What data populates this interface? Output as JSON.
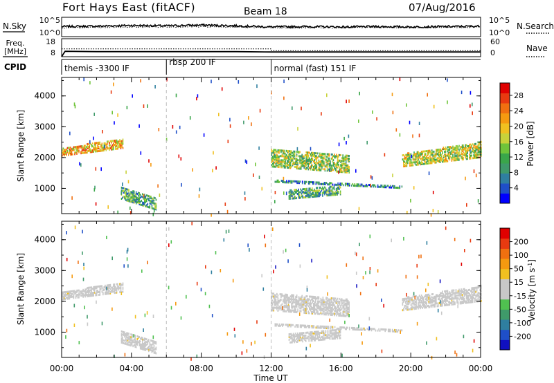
{
  "header": {
    "title": "Fort Hays East (fitACF)",
    "beam": "Beam 18",
    "date": "07/Aug/2016"
  },
  "colors": {
    "power_scale": [
      "#0000ff",
      "#1f4fc8",
      "#2f7fa0",
      "#3f9a6a",
      "#3aa64a",
      "#6fc43a",
      "#c8d23a",
      "#f0c020",
      "#f59a10",
      "#f07010",
      "#e83a10",
      "#e00000"
    ],
    "velocity_scale": [
      "#1010c0",
      "#1f4fc8",
      "#2f7fa0",
      "#3f9a6a",
      "#50c050",
      "#c8c8c8",
      "#c8c8c8",
      "#f0c020",
      "#f59a10",
      "#f07010",
      "#e83a10",
      "#e00000"
    ]
  },
  "chart_data": [
    {
      "type": "line",
      "panel": "noise",
      "left_label": "N.Sky",
      "right_label": "N.Search",
      "yticks_left": [
        "10^5",
        "10^0"
      ],
      "yticks_right": [
        "10^5",
        "10^0"
      ],
      "series": [
        {
          "name": "N.Sky",
          "style": "solid",
          "x": [
            0,
            2,
            4,
            6,
            8,
            10,
            12,
            14,
            16,
            18,
            20,
            22,
            24
          ],
          "y": [
            2.6,
            2.7,
            2.9,
            2.8,
            3.0,
            2.8,
            2.5,
            2.6,
            2.5,
            2.6,
            2.5,
            2.6,
            2.7
          ]
        },
        {
          "name": "N.Search",
          "style": "dotted",
          "x": [
            0,
            2,
            4,
            6,
            8,
            10,
            12,
            14,
            16,
            18,
            20,
            22,
            24
          ],
          "y": [
            2.3,
            2.4,
            2.5,
            2.5,
            2.6,
            2.5,
            2.3,
            2.3,
            2.3,
            2.4,
            2.3,
            2.4,
            2.5
          ]
        }
      ]
    },
    {
      "type": "line",
      "panel": "freq-nave",
      "left_label": "Freq. [MHz]",
      "right_label": "Nave",
      "yticks_left": [
        "18",
        "8"
      ],
      "yticks_right": [
        "60",
        "0"
      ],
      "series": [
        {
          "name": "Freq.",
          "style": "solid",
          "x": [
            0,
            0.2,
            2,
            4,
            6,
            8,
            10,
            12,
            14,
            16,
            18,
            20,
            22,
            24
          ],
          "y": [
            8,
            11,
            10.8,
            10.8,
            10.8,
            10.8,
            10.8,
            10.6,
            10.6,
            10.6,
            10.6,
            10.6,
            10.6,
            10.6
          ]
        },
        {
          "name": "Nave",
          "style": "dotted",
          "x": [
            0,
            12,
            12.01,
            24
          ],
          "y": [
            26,
            26,
            20,
            20
          ]
        }
      ]
    },
    {
      "type": "table",
      "panel": "cpid",
      "label": "CPID",
      "segments": [
        {
          "start": 0,
          "end": 6,
          "name": "themis -3300 IF"
        },
        {
          "start": 6,
          "end": 12,
          "name": "rbsp 200 IF"
        },
        {
          "start": 12,
          "end": 24,
          "name": "normal (fast) 151 IF"
        }
      ]
    },
    {
      "type": "heatmap",
      "panel": "power",
      "ylabel": "Slant Range [km]",
      "colorbar_label": "Power [dB]",
      "colorbar_ticks": [
        "4",
        "8",
        "12",
        "16",
        "20",
        "24",
        "28"
      ],
      "yticks": [
        "1000",
        "2000",
        "3000",
        "4000"
      ],
      "ylim": [
        180,
        4600
      ],
      "xlim": [
        0,
        24
      ],
      "bands": [
        {
          "t0": 0.0,
          "t1": 3.5,
          "r0": 2050,
          "r1": 2300,
          "r0e": 2300,
          "r1e": 2600,
          "level": 20
        },
        {
          "t0": 3.4,
          "t1": 5.4,
          "r0": 1050,
          "r1": 700,
          "r0e": 650,
          "r1e": 300,
          "level": 10
        },
        {
          "t0": 12.0,
          "t1": 16.5,
          "r0": 2250,
          "r1": 2050,
          "r0e": 1700,
          "r1e": 1500,
          "level": 14
        },
        {
          "t0": 12.2,
          "t1": 19.5,
          "r0": 1250,
          "r1": 1050,
          "r0e": 1200,
          "r1e": 1000,
          "level": 8
        },
        {
          "t0": 13.0,
          "t1": 16.0,
          "r0": 950,
          "r1": 1100,
          "r0e": 650,
          "r1e": 800,
          "level": 10
        },
        {
          "t0": 19.5,
          "t1": 24.0,
          "r0": 1700,
          "r1": 2000,
          "r0e": 2100,
          "r1e": 2500,
          "level": 16
        },
        {
          "t0": 0.0,
          "t1": 24.0,
          "r0": 200,
          "r1": 320,
          "r0e": 200,
          "r1e": 320,
          "level": 6
        }
      ]
    },
    {
      "type": "heatmap",
      "panel": "velocity",
      "ylabel": "Slant Range [km]",
      "colorbar_label": "Velocity [m s^-1]",
      "colorbar_ticks": [
        "-200",
        "-100",
        "-50",
        "-15",
        "15",
        "50",
        "100",
        "200"
      ],
      "yticks": [
        "1000",
        "2000",
        "3000",
        "4000"
      ],
      "ylim": [
        180,
        4600
      ],
      "xlim": [
        0,
        24
      ],
      "xticks": [
        "00:00",
        "04:00",
        "08:00",
        "12:00",
        "16:00",
        "20:00",
        "00:00"
      ],
      "xlabel": "Time UT",
      "bands": [
        {
          "t0": 0.0,
          "t1": 3.5,
          "r0": 2050,
          "r1": 2300,
          "r0e": 2300,
          "r1e": 2600,
          "level": 0
        },
        {
          "t0": 3.4,
          "t1": 5.4,
          "r0": 1050,
          "r1": 700,
          "r0e": 650,
          "r1e": 300,
          "level": 0
        },
        {
          "t0": 12.0,
          "t1": 16.5,
          "r0": 2250,
          "r1": 2050,
          "r0e": 1700,
          "r1e": 1500,
          "level": 0
        },
        {
          "t0": 12.2,
          "t1": 19.5,
          "r0": 1250,
          "r1": 1050,
          "r0e": 1200,
          "r1e": 1000,
          "level": 0
        },
        {
          "t0": 13.0,
          "t1": 16.0,
          "r0": 950,
          "r1": 1100,
          "r0e": 650,
          "r1e": 800,
          "level": 0
        },
        {
          "t0": 19.5,
          "t1": 24.0,
          "r0": 1700,
          "r1": 2000,
          "r0e": 2100,
          "r1e": 2500,
          "level": 0
        },
        {
          "t0": 0.0,
          "t1": 24.0,
          "r0": 200,
          "r1": 320,
          "r0e": 200,
          "r1e": 320,
          "level": -40
        }
      ]
    }
  ]
}
